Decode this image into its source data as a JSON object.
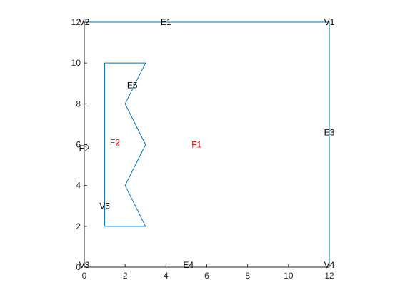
{
  "chart_data": {
    "type": "line",
    "title": "",
    "xlabel": "",
    "ylabel": "",
    "xlim": [
      0,
      12
    ],
    "ylim": [
      0,
      12
    ],
    "grid": false,
    "box": true,
    "x_ticks": [
      "0",
      "2",
      "4",
      "6",
      "8",
      "10",
      "12"
    ],
    "y_ticks": [
      "0",
      "2",
      "4",
      "6",
      "8",
      "10",
      "12"
    ],
    "x_tick_values": [
      0,
      2,
      4,
      6,
      8,
      10,
      12
    ],
    "y_tick_values": [
      0,
      2,
      4,
      6,
      8,
      10,
      12
    ],
    "line_color": "#0072BD",
    "axis_color": "#262626",
    "series": [
      {
        "points": [
          [
            0,
            0
          ],
          [
            12,
            0
          ],
          [
            12,
            12
          ],
          [
            0,
            12
          ],
          [
            0,
            0
          ]
        ]
      },
      {
        "points": [
          [
            1,
            2
          ],
          [
            3,
            2
          ],
          [
            2,
            4
          ],
          [
            3,
            6
          ],
          [
            2,
            8
          ],
          [
            3,
            10
          ],
          [
            1,
            10
          ],
          [
            1,
            2
          ]
        ]
      }
    ],
    "annotations": [
      {
        "text": "V2",
        "x": 0,
        "y": 12,
        "color": "#000000"
      },
      {
        "text": "E1",
        "x": 4,
        "y": 12,
        "color": "#000000"
      },
      {
        "text": "V1",
        "x": 12,
        "y": 12,
        "color": "#000000"
      },
      {
        "text": "E5",
        "x": 2.35,
        "y": 8.9,
        "color": "#000000"
      },
      {
        "text": "F2",
        "x": 1.5,
        "y": 6.1,
        "color": "#FF0000"
      },
      {
        "text": "F1",
        "x": 5.5,
        "y": 6.0,
        "color": "#FF0000"
      },
      {
        "text": "E2",
        "x": 0,
        "y": 5.8,
        "color": "#000000"
      },
      {
        "text": "E3",
        "x": 12,
        "y": 6.6,
        "color": "#000000"
      },
      {
        "text": "V5",
        "x": 1,
        "y": 3.0,
        "color": "#000000"
      },
      {
        "text": "V3",
        "x": 0,
        "y": 0.1,
        "color": "#000000"
      },
      {
        "text": "E4",
        "x": 5.1,
        "y": 0.1,
        "color": "#000000"
      },
      {
        "text": "V4",
        "x": 12,
        "y": 0.1,
        "color": "#000000"
      }
    ]
  }
}
